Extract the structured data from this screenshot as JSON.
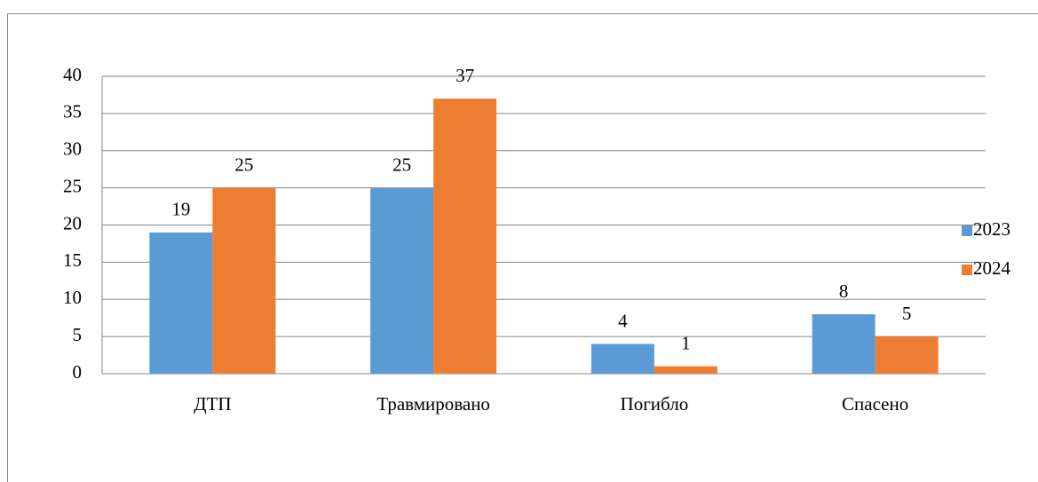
{
  "chart_data": {
    "type": "bar",
    "categories": [
      "ДТП",
      "Травмировано",
      "Погибло",
      "Спасено"
    ],
    "series": [
      {
        "name": "2023",
        "color": "#5b9bd5",
        "values": [
          19,
          25,
          4,
          8
        ]
      },
      {
        "name": "2024",
        "color": "#ed7d31",
        "values": [
          25,
          37,
          1,
          5
        ]
      }
    ],
    "ylim": [
      0,
      40
    ],
    "yticks": [
      0,
      5,
      10,
      15,
      20,
      25,
      30,
      35,
      40
    ],
    "grid": true,
    "legend": "right"
  }
}
